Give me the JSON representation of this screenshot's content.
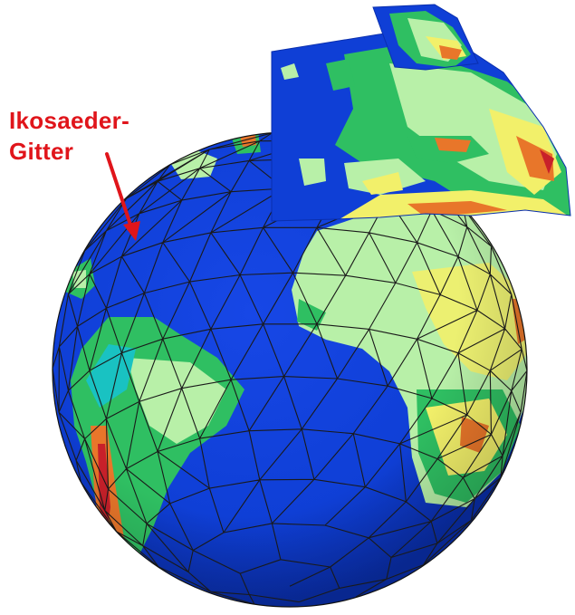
{
  "annotation": {
    "line1": "Ikosaeder-",
    "line2": "Gitter"
  },
  "colors": {
    "ocean": "#0f3fd6",
    "ocean_deep": "#0a2fb0",
    "lowland": "#2fbf62",
    "plain": "#b8f0a8",
    "cyan_shelf": "#19c2c2",
    "highland": "#f2f06a",
    "mountain": "#e8762a",
    "peak": "#c8202a",
    "grid_line": "#1a1a1a",
    "annotation": "#e0151b"
  },
  "icons": {
    "arrow": "red-arrow-icon"
  }
}
